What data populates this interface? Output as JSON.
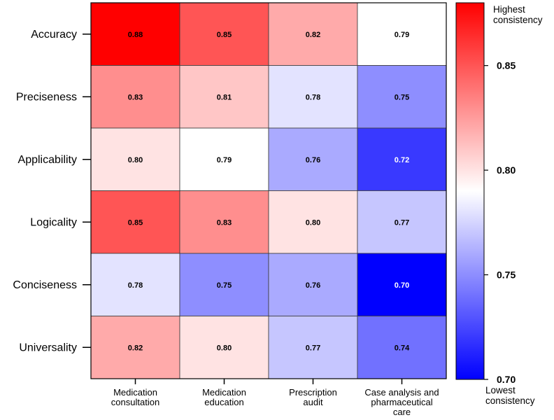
{
  "chart_data": {
    "type": "heatmap",
    "rows": [
      "Accuracy",
      "Preciseness",
      "Applicability",
      "Logicality",
      "Conciseness",
      "Universality"
    ],
    "columns": [
      [
        "Medication",
        "consultation"
      ],
      [
        "Medication",
        "education"
      ],
      [
        "Prescription",
        "audit"
      ],
      [
        "Case analysis and",
        "pharmaceutical",
        "care"
      ]
    ],
    "values": [
      [
        0.88,
        0.85,
        0.82,
        0.79
      ],
      [
        0.83,
        0.81,
        0.78,
        0.75
      ],
      [
        0.8,
        0.79,
        0.76,
        0.72
      ],
      [
        0.85,
        0.83,
        0.8,
        0.77
      ],
      [
        0.78,
        0.75,
        0.76,
        0.7
      ],
      [
        0.82,
        0.8,
        0.77,
        0.74
      ]
    ],
    "colorbar": {
      "min": 0.7,
      "max": 0.88,
      "center": 0.79,
      "ticks": [
        0.7,
        0.75,
        0.8,
        0.85
      ],
      "top_label": [
        "Highest",
        "consistency"
      ],
      "bottom_label": [
        "Lowest",
        "consistency"
      ]
    },
    "colors": {
      "low": "#0000ff",
      "mid": "#ffffff",
      "high": "#ff0000"
    }
  }
}
